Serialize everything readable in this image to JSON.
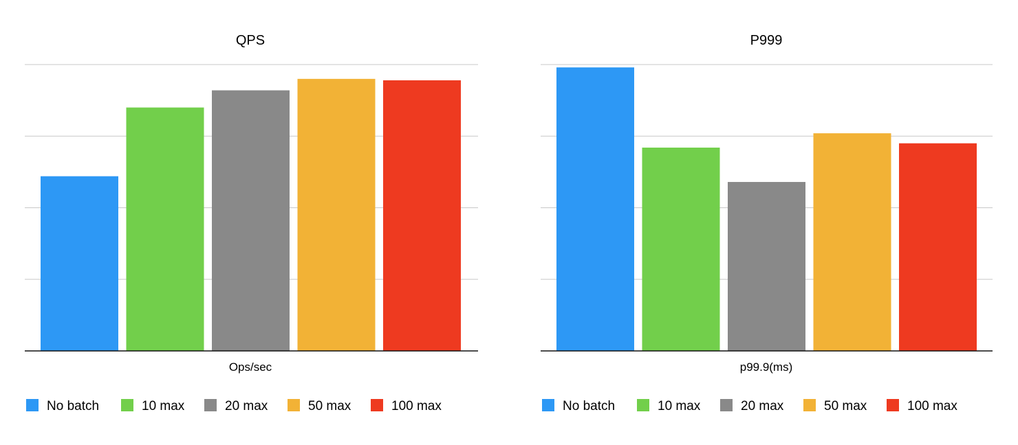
{
  "chart_data": [
    {
      "type": "bar",
      "title": "QPS",
      "xlabel": "Ops/sec",
      "ylabel": "",
      "ylim": [
        0,
        100
      ],
      "grid": true,
      "legend_position": "bottom",
      "categories": [
        "Ops/sec"
      ],
      "series": [
        {
          "name": "No batch",
          "color": "#2D98F5",
          "values": [
            61
          ]
        },
        {
          "name": "10 max",
          "color": "#72CF4B",
          "values": [
            85
          ]
        },
        {
          "name": "20 max",
          "color": "#898989",
          "values": [
            91
          ]
        },
        {
          "name": "50 max",
          "color": "#F2B236",
          "values": [
            95
          ]
        },
        {
          "name": "100 max",
          "color": "#EE3A20",
          "values": [
            94.5
          ]
        }
      ]
    },
    {
      "type": "bar",
      "title": "P999",
      "xlabel": "p99.9(ms)",
      "ylabel": "",
      "ylim": [
        0,
        100
      ],
      "grid": true,
      "legend_position": "bottom",
      "categories": [
        "p99.9(ms)"
      ],
      "series": [
        {
          "name": "No batch",
          "color": "#2D98F5",
          "values": [
            99
          ]
        },
        {
          "name": "10 max",
          "color": "#72CF4B",
          "values": [
            71
          ]
        },
        {
          "name": "20 max",
          "color": "#898989",
          "values": [
            59
          ]
        },
        {
          "name": "50 max",
          "color": "#F2B236",
          "values": [
            76
          ]
        },
        {
          "name": "100 max",
          "color": "#EE3A20",
          "values": [
            72.5
          ]
        }
      ]
    }
  ]
}
